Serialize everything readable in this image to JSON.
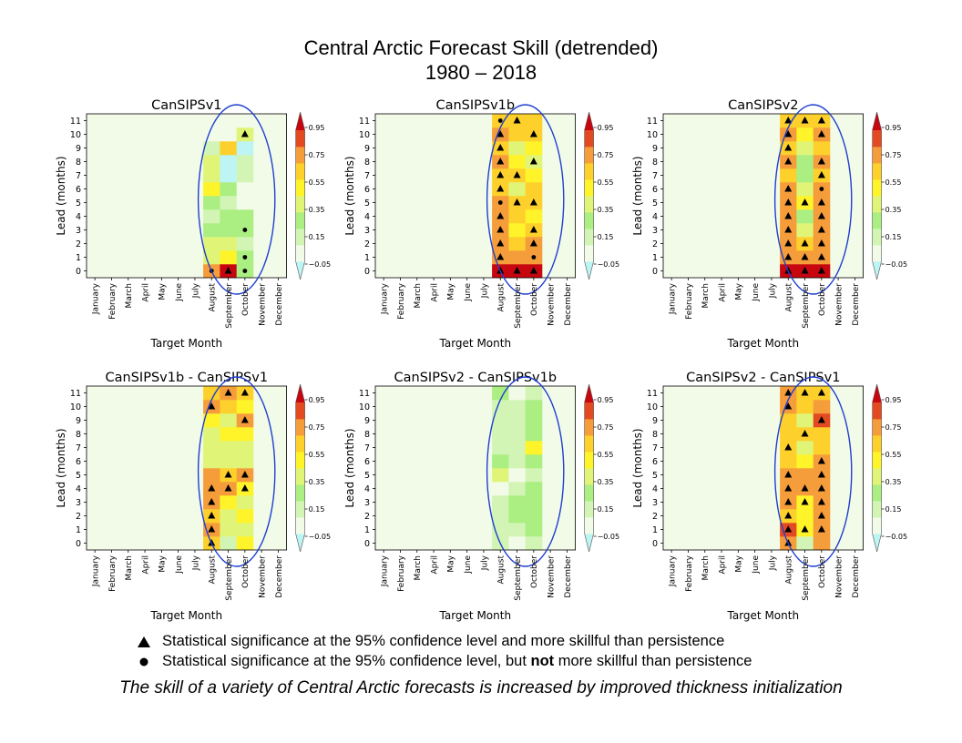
{
  "figure": {
    "title_line1": "Central Arctic Forecast Skill (detrended)",
    "title_line2": "1980 – 2018",
    "caption": "The skill of a variety of Central Arctic forecasts is increased by improved thickness initialization"
  },
  "legend": {
    "triangle_text": "Statistical significance at the 95% confidence level and more skillful than persistence",
    "dot_text_before": "Statistical significance at the 95% confidence level, but ",
    "dot_text_bold": "not",
    "dot_text_after": " more skillful than persistence"
  },
  "colors": {
    "background_cell": "#f2fbe8",
    "ellipse": "#1f3fd1",
    "colormap": [
      "#bdf4f4",
      "#f2fbe8",
      "#d2f5b5",
      "#abee82",
      "#e0f577",
      "#fff42a",
      "#fdd02b",
      "#f59d3a",
      "#e44a22",
      "#c70610"
    ]
  },
  "chart_data": [
    {
      "type": "heatmap",
      "title": "CanSIPSv1",
      "xlabel": "Target Month",
      "ylabel": "Lead (months)",
      "x_categories": [
        "January",
        "February",
        "March",
        "April",
        "May",
        "June",
        "July",
        "August",
        "September",
        "October",
        "November",
        "December"
      ],
      "y_categories": [
        0,
        1,
        2,
        3,
        4,
        5,
        6,
        7,
        8,
        9,
        10,
        11
      ],
      "colorbar_ticks": [
        0.95,
        0.75,
        0.55,
        0.35,
        0.15,
        -0.05
      ],
      "columns": [
        {
          "month": "August",
          "values": [
            0.6,
            0.3,
            0.3,
            0.2,
            0.05,
            0.15,
            0.4,
            0.3,
            0.3,
            0.1,
            0.0,
            -0.05
          ],
          "sig": [
            "dot",
            "",
            "",
            "",
            "",
            "",
            "",
            "",
            "",
            "",
            "",
            ""
          ]
        },
        {
          "month": "September",
          "values": [
            0.9,
            0.4,
            0.25,
            0.15,
            0.15,
            0.1,
            0.15,
            -0.1,
            -0.15,
            0.5,
            0.0,
            -0.05
          ],
          "sig": [
            "tri",
            "",
            "",
            "",
            "",
            "",
            "",
            "",
            "",
            "",
            "",
            ""
          ]
        },
        {
          "month": "October",
          "values": [
            0.2,
            0.15,
            0.1,
            0.2,
            0.2,
            -0.05,
            0.0,
            0.1,
            0.05,
            -0.15,
            0.3,
            -0.05
          ],
          "sig": [
            "dot",
            "dot",
            "",
            "dot",
            "",
            "",
            "",
            "",
            "",
            "",
            "tri",
            ""
          ]
        }
      ]
    },
    {
      "type": "heatmap",
      "title": "CanSIPSv1b",
      "xlabel": "Target Month",
      "ylabel": "Lead (months)",
      "x_categories": [
        "January",
        "February",
        "March",
        "April",
        "May",
        "June",
        "July",
        "August",
        "September",
        "October",
        "November",
        "December"
      ],
      "y_categories": [
        0,
        1,
        2,
        3,
        4,
        5,
        6,
        7,
        8,
        9,
        10,
        11
      ],
      "colorbar_ticks": [
        0.95,
        0.75,
        0.55,
        0.35,
        0.15,
        -0.05
      ],
      "columns": [
        {
          "month": "August",
          "values": [
            0.9,
            0.6,
            0.6,
            0.6,
            0.55,
            0.55,
            0.5,
            0.5,
            0.55,
            0.5,
            0.65,
            0.45
          ],
          "sig": [
            "tri",
            "tri",
            "tri",
            "tri",
            "tri",
            "dot",
            "tri",
            "tri",
            "tri",
            "tri",
            "tri",
            "dot"
          ]
        },
        {
          "month": "September",
          "values": [
            0.95,
            0.65,
            0.5,
            0.4,
            0.45,
            0.45,
            0.3,
            0.45,
            0.35,
            0.3,
            0.45,
            0.5
          ],
          "sig": [
            "tri",
            "",
            "",
            "",
            "",
            "tri",
            "",
            "tri",
            "",
            "",
            "",
            "tri"
          ]
        },
        {
          "month": "October",
          "values": [
            0.85,
            0.65,
            0.65,
            0.45,
            0.35,
            0.5,
            0.45,
            0.4,
            0.3,
            0.35,
            0.5,
            0.45
          ],
          "sig": [
            "tri",
            "dot",
            "tri",
            "tri",
            "",
            "tri",
            "",
            "",
            "tri",
            "",
            "tri",
            ""
          ]
        }
      ]
    },
    {
      "type": "heatmap",
      "title": "CanSIPSv2",
      "xlabel": "Target Month",
      "ylabel": "Lead (months)",
      "x_categories": [
        "January",
        "February",
        "March",
        "April",
        "May",
        "June",
        "July",
        "August",
        "September",
        "October",
        "November",
        "December"
      ],
      "y_categories": [
        0,
        1,
        2,
        3,
        4,
        5,
        6,
        7,
        8,
        9,
        10,
        11
      ],
      "colorbar_ticks": [
        0.95,
        0.75,
        0.55,
        0.35,
        0.15,
        -0.05
      ],
      "columns": [
        {
          "month": "August",
          "values": [
            0.9,
            0.6,
            0.65,
            0.6,
            0.6,
            0.55,
            0.55,
            0.5,
            0.55,
            0.5,
            0.55,
            0.45
          ],
          "sig": [
            "tri",
            "tri",
            "tri",
            "tri",
            "tri",
            "tri",
            "tri",
            "",
            "tri",
            "tri",
            "tri",
            "tri"
          ]
        },
        {
          "month": "September",
          "values": [
            0.95,
            0.6,
            0.45,
            0.25,
            0.2,
            0.4,
            0.25,
            0.2,
            0.2,
            0.25,
            0.35,
            0.45
          ],
          "sig": [
            "tri",
            "tri",
            "tri",
            "",
            "",
            "tri",
            "",
            "",
            "",
            "",
            "",
            "tri"
          ]
        },
        {
          "month": "October",
          "values": [
            0.9,
            0.6,
            0.65,
            0.6,
            0.65,
            0.55,
            0.55,
            0.5,
            0.55,
            0.45,
            0.6,
            0.45
          ],
          "sig": [
            "tri",
            "tri",
            "tri",
            "tri",
            "tri",
            "tri",
            "dot",
            "tri",
            "tri",
            "",
            "tri",
            "tri"
          ]
        }
      ]
    },
    {
      "type": "heatmap",
      "title": "CanSIPSv1b - CanSIPSv1",
      "xlabel": "Target Month",
      "ylabel": "Lead (months)",
      "x_categories": [
        "January",
        "February",
        "March",
        "April",
        "May",
        "June",
        "July",
        "August",
        "September",
        "October",
        "November",
        "December"
      ],
      "y_categories": [
        0,
        1,
        2,
        3,
        4,
        5,
        6,
        7,
        8,
        9,
        10,
        11
      ],
      "colorbar_ticks": [
        0.95,
        0.75,
        0.55,
        0.35,
        0.15,
        -0.05
      ],
      "columns": [
        {
          "month": "August",
          "values": [
            0.45,
            0.55,
            0.45,
            0.55,
            0.6,
            0.55,
            0.3,
            0.25,
            0.3,
            0.35,
            0.65,
            0.5
          ],
          "sig": [
            "tri",
            "tri",
            "tri",
            "tri",
            "tri",
            "",
            "",
            "",
            "",
            "",
            "tri",
            ""
          ]
        },
        {
          "month": "September",
          "values": [
            0.05,
            0.25,
            0.3,
            0.4,
            0.6,
            0.5,
            0.25,
            0.3,
            0.35,
            0.3,
            0.45,
            0.55
          ],
          "sig": [
            "",
            "",
            "",
            "",
            "tri",
            "tri",
            "",
            "",
            "",
            "",
            "",
            "tri"
          ]
        },
        {
          "month": "October",
          "values": [
            0.35,
            0.3,
            0.35,
            0.3,
            0.4,
            0.55,
            0.3,
            0.25,
            0.35,
            0.55,
            0.35,
            0.45
          ],
          "sig": [
            "",
            "",
            "",
            "",
            "tri",
            "tri",
            "",
            "",
            "",
            "tri",
            "",
            "tri"
          ]
        }
      ]
    },
    {
      "type": "heatmap",
      "title": "CanSIPSv2 - CanSIPSv1b",
      "xlabel": "Target Month",
      "ylabel": "Lead (months)",
      "x_categories": [
        "January",
        "February",
        "March",
        "April",
        "May",
        "June",
        "July",
        "August",
        "September",
        "October",
        "November",
        "December"
      ],
      "y_categories": [
        0,
        1,
        2,
        3,
        4,
        5,
        6,
        7,
        8,
        9,
        10,
        11
      ],
      "colorbar_ticks": [
        0.95,
        0.75,
        0.55,
        0.35,
        0.15,
        -0.05
      ],
      "columns": [
        {
          "month": "August",
          "values": [
            0.05,
            0.1,
            0.1,
            0.05,
            0.0,
            0.25,
            0.15,
            0.1,
            0.05,
            0.1,
            0.05,
            0.2
          ],
          "sig": [
            "",
            "",
            "",
            "",
            "",
            "",
            "",
            "",
            "",
            "",
            "",
            ""
          ]
        },
        {
          "month": "September",
          "values": [
            0.0,
            0.05,
            0.15,
            0.15,
            0.05,
            -0.05,
            0.1,
            0.05,
            0.05,
            0.1,
            0.05,
            0.0
          ],
          "sig": [
            "",
            "",
            "",
            "",
            "",
            "",
            "",
            "",
            "",
            "",
            "",
            ""
          ]
        },
        {
          "month": "October",
          "values": [
            0.1,
            0.15,
            0.2,
            0.2,
            0.2,
            0.1,
            0.15,
            0.4,
            0.2,
            0.15,
            0.15,
            0.1
          ],
          "sig": [
            "",
            "",
            "",
            "",
            "",
            "",
            "",
            "",
            "",
            "",
            "",
            ""
          ]
        }
      ]
    },
    {
      "type": "heatmap",
      "title": "CanSIPSv2 - CanSIPSv1",
      "xlabel": "Target Month",
      "ylabel": "Lead (months)",
      "x_categories": [
        "January",
        "February",
        "March",
        "April",
        "May",
        "June",
        "July",
        "August",
        "September",
        "October",
        "November",
        "December"
      ],
      "y_categories": [
        0,
        1,
        2,
        3,
        4,
        5,
        6,
        7,
        8,
        9,
        10,
        11
      ],
      "colorbar_ticks": [
        0.95,
        0.75,
        0.55,
        0.35,
        0.15,
        -0.05
      ],
      "columns": [
        {
          "month": "August",
          "values": [
            0.55,
            0.7,
            0.5,
            0.55,
            0.6,
            0.6,
            0.5,
            0.5,
            0.45,
            0.5,
            0.65,
            0.55
          ],
          "sig": [
            "tri",
            "tri",
            "tri",
            "tri",
            "tri",
            "tri",
            "",
            "tri",
            "",
            "",
            "tri",
            "tri"
          ]
        },
        {
          "month": "September",
          "values": [
            0.1,
            0.35,
            0.35,
            0.4,
            0.65,
            0.55,
            0.35,
            0.25,
            0.45,
            0.25,
            0.45,
            0.5
          ],
          "sig": [
            "",
            "tri",
            "",
            "tri",
            "tri",
            "",
            "",
            "",
            "tri",
            "",
            "",
            "tri"
          ]
        },
        {
          "month": "October",
          "values": [
            0.55,
            0.6,
            0.65,
            0.6,
            0.55,
            0.6,
            0.55,
            0.45,
            0.45,
            0.7,
            0.55,
            0.5
          ],
          "sig": [
            "",
            "tri",
            "tri",
            "tri",
            "tri",
            "tri",
            "tri",
            "",
            "",
            "tri",
            "",
            "tri"
          ]
        }
      ]
    }
  ]
}
